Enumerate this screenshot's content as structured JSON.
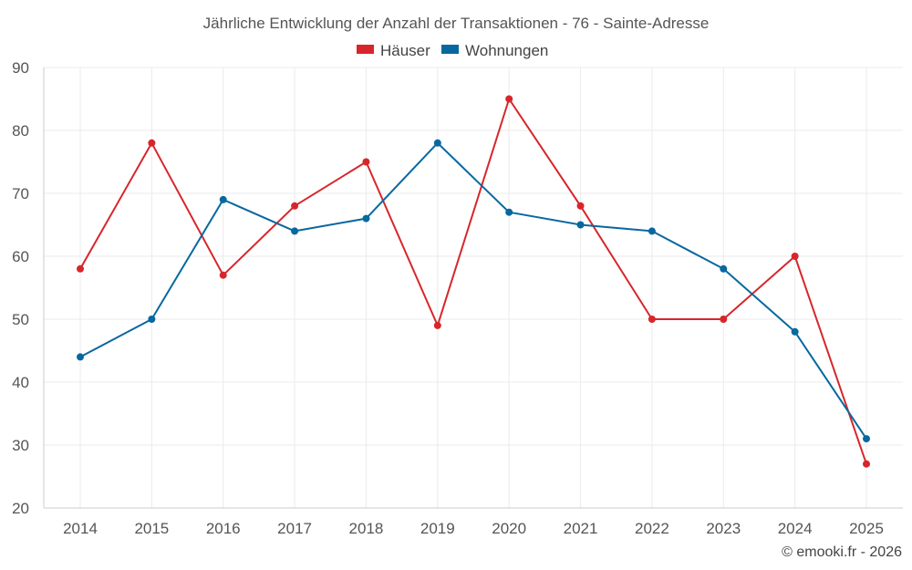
{
  "chart_data": {
    "type": "line",
    "title": "Jährliche Entwicklung der Anzahl der Transaktionen - 76 - Sainte-Adresse",
    "categories": [
      "2014",
      "2015",
      "2016",
      "2017",
      "2018",
      "2019",
      "2020",
      "2021",
      "2022",
      "2023",
      "2024",
      "2025"
    ],
    "series": [
      {
        "name": "Häuser",
        "color": "#d7262b",
        "values": [
          58,
          78,
          57,
          68,
          75,
          49,
          85,
          68,
          50,
          50,
          60,
          27
        ]
      },
      {
        "name": "Wohnungen",
        "color": "#07689f",
        "values": [
          44,
          50,
          69,
          64,
          66,
          78,
          67,
          65,
          64,
          58,
          48,
          31
        ]
      }
    ],
    "ylim": [
      20,
      90
    ],
    "yticks": [
      20,
      30,
      40,
      50,
      60,
      70,
      80,
      90
    ],
    "grid": true,
    "legend_position": "top-center",
    "credit": "© emooki.fr - 2026"
  }
}
